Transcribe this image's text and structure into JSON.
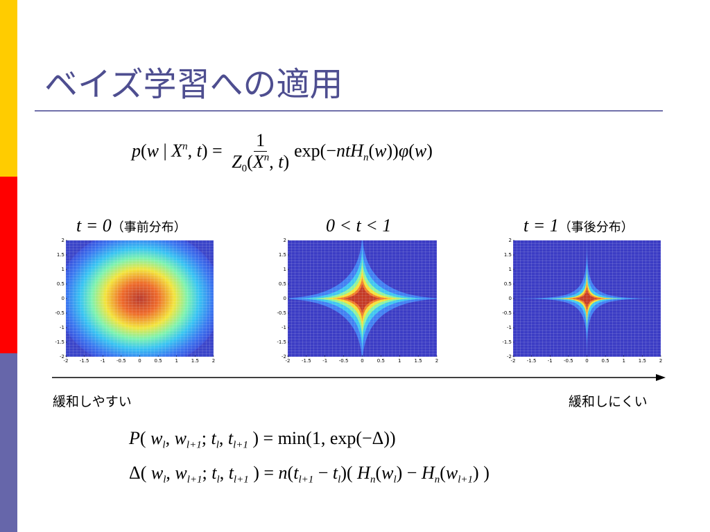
{
  "title": "ベイズ学習への適用",
  "formula_main": {
    "lhs": [
      {
        "text": "p",
        "style": "italic"
      },
      {
        "text": "("
      },
      {
        "text": "w",
        "style": "italic"
      },
      {
        "text": " | "
      },
      {
        "text": "X",
        "style": "italic"
      },
      {
        "text": "n",
        "style": "italic",
        "pos": "sup"
      },
      {
        "text": ", "
      },
      {
        "text": "t",
        "style": "italic"
      },
      {
        "text": ") = "
      }
    ],
    "numerator": [
      {
        "text": "1"
      }
    ],
    "denominator": [
      {
        "text": "Z",
        "style": "italic"
      },
      {
        "text": "0",
        "pos": "sub"
      },
      {
        "text": "("
      },
      {
        "text": "X",
        "style": "italic"
      },
      {
        "text": "n",
        "style": "italic",
        "pos": "sup"
      },
      {
        "text": ", "
      },
      {
        "text": "t",
        "style": "italic"
      },
      {
        "text": ")"
      }
    ],
    "rhs": [
      {
        "text": "exp(−"
      },
      {
        "text": "ntH",
        "style": "italic"
      },
      {
        "text": "n",
        "style": "italic",
        "pos": "sub"
      },
      {
        "text": "("
      },
      {
        "text": "w",
        "style": "italic"
      },
      {
        "text": "))"
      },
      {
        "text": "φ",
        "style": "italic"
      },
      {
        "text": "("
      },
      {
        "text": "w",
        "style": "italic"
      },
      {
        "text": ")"
      }
    ]
  },
  "plots": [
    {
      "label_math": "t = 0",
      "label_note": "（事前分布）",
      "xlim": [
        -2,
        2
      ],
      "ylim": [
        -2,
        2
      ],
      "xticks": [
        -2,
        -1.5,
        -1,
        -0.5,
        0,
        0.5,
        1,
        1.5,
        2
      ],
      "yticks": [
        -2,
        -1.5,
        -1,
        -0.5,
        0,
        0.5,
        1,
        1.5,
        2
      ]
    },
    {
      "label_math": "0 < t < 1",
      "xlim": [
        -2,
        2
      ],
      "ylim": [
        -2,
        2
      ],
      "xticks": [
        -2,
        -1.5,
        -1,
        -0.5,
        0,
        0.5,
        1,
        1.5,
        2
      ],
      "yticks": [
        -2,
        -1.5,
        -1,
        -0.5,
        0,
        0.5,
        1,
        1.5,
        2
      ]
    },
    {
      "label_math": "t = 1",
      "label_note": "（事後分布）",
      "xlim": [
        -2,
        2
      ],
      "ylim": [
        -2,
        2
      ],
      "xticks": [
        -2,
        -1.5,
        -1,
        -0.5,
        0,
        0.5,
        1,
        1.5,
        2
      ],
      "yticks": [
        -2,
        -1.5,
        -1,
        -0.5,
        0,
        0.5,
        1,
        1.5,
        2
      ]
    }
  ],
  "arrow": {
    "left": "緩和しやすい",
    "right": "緩和しにくい"
  },
  "formulas": [
    [
      {
        "text": "P",
        "style": "italic"
      },
      {
        "text": "( "
      },
      {
        "text": "w",
        "style": "italic"
      },
      {
        "text": "l",
        "style": "italic",
        "pos": "sub"
      },
      {
        "text": ", "
      },
      {
        "text": "w",
        "style": "italic"
      },
      {
        "text": "l+1",
        "style": "italic",
        "pos": "sub"
      },
      {
        "text": "; "
      },
      {
        "text": "t",
        "style": "italic"
      },
      {
        "text": "l",
        "style": "italic",
        "pos": "sub"
      },
      {
        "text": ", "
      },
      {
        "text": "t",
        "style": "italic"
      },
      {
        "text": "l+1",
        "style": "italic",
        "pos": "sub"
      },
      {
        "text": " ) = min(1, exp(−Δ))"
      }
    ],
    [
      {
        "text": "Δ( "
      },
      {
        "text": "w",
        "style": "italic"
      },
      {
        "text": "l",
        "style": "italic",
        "pos": "sub"
      },
      {
        "text": ", "
      },
      {
        "text": "w",
        "style": "italic"
      },
      {
        "text": "l+1",
        "style": "italic",
        "pos": "sub"
      },
      {
        "text": "; "
      },
      {
        "text": "t",
        "style": "italic"
      },
      {
        "text": "l",
        "style": "italic",
        "pos": "sub"
      },
      {
        "text": ", "
      },
      {
        "text": "t",
        "style": "italic"
      },
      {
        "text": "l+1",
        "style": "italic",
        "pos": "sub"
      },
      {
        "text": " ) = "
      },
      {
        "text": "n",
        "style": "italic"
      },
      {
        "text": "("
      },
      {
        "text": "t",
        "style": "italic"
      },
      {
        "text": "l+1",
        "style": "italic",
        "pos": "sub"
      },
      {
        "text": " − "
      },
      {
        "text": "t",
        "style": "italic"
      },
      {
        "text": "l",
        "style": "italic",
        "pos": "sub"
      },
      {
        "text": ")( "
      },
      {
        "text": "H",
        "style": "italic"
      },
      {
        "text": "n",
        "style": "italic",
        "pos": "sub"
      },
      {
        "text": "("
      },
      {
        "text": "w",
        "style": "italic"
      },
      {
        "text": "l",
        "style": "italic",
        "pos": "sub"
      },
      {
        "text": ") − "
      },
      {
        "text": "H",
        "style": "italic"
      },
      {
        "text": "n",
        "style": "italic",
        "pos": "sub"
      },
      {
        "text": "("
      },
      {
        "text": "w",
        "style": "italic"
      },
      {
        "text": "l+1",
        "style": "italic",
        "pos": "sub"
      },
      {
        "text": ") )"
      }
    ]
  ]
}
